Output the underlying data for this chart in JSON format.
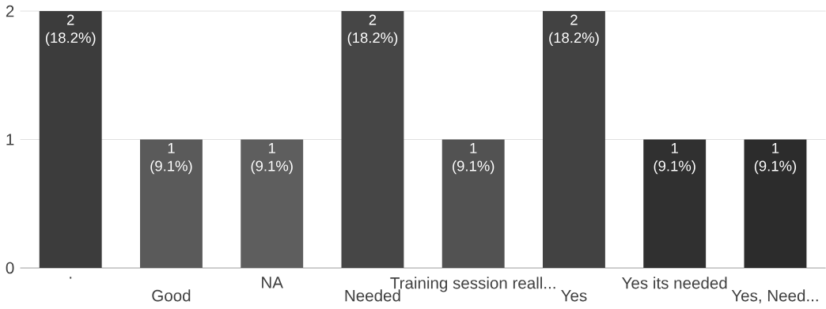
{
  "chart_data": {
    "type": "bar",
    "categories": [
      ".",
      "Good",
      "NA",
      "Needed",
      "Training session reall...",
      "Yes",
      "Yes its needed",
      "Yes, Need..."
    ],
    "values": [
      2,
      1,
      1,
      2,
      1,
      2,
      1,
      1
    ],
    "colors": [
      "#3c3c3c",
      "#5a5a5a",
      "#5e5e5e",
      "#464646",
      "#525252",
      "#424242",
      "#303030",
      "#2c2c2c"
    ],
    "value_labels": [
      "2 (18.2%)",
      "1 (9.1%)",
      "1 (9.1%)",
      "2 (18.2%)",
      "1 (9.1%)",
      "2 (18.2%)",
      "1 (9.1%)",
      "1 (9.1%)"
    ],
    "ylim": [
      0,
      2
    ],
    "yticks": [
      0,
      1,
      2
    ],
    "grid": "y"
  }
}
